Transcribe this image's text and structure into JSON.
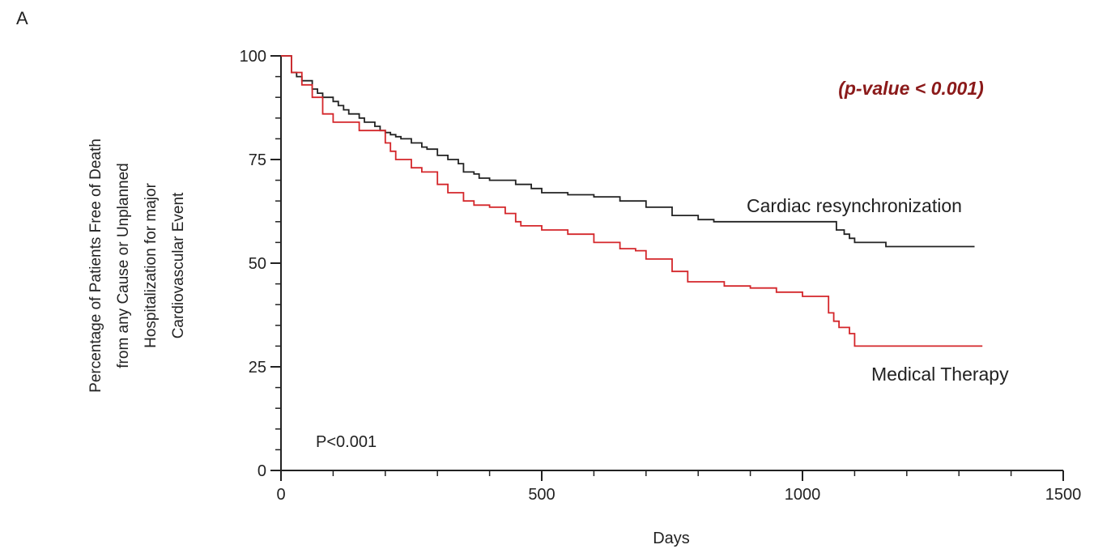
{
  "panel_label": "A",
  "annotations": {
    "pvalue_top": "(p-value < 0.001)",
    "pvalue_bottom": "P<0.001",
    "pvalue_top_color": "#8b1a1a"
  },
  "chart_data": {
    "type": "line",
    "xlabel": "Days",
    "ylabel_lines": [
      "Percentage of Patients Free of Death",
      "from any Cause or Unplanned",
      "Hospitalization for major",
      "Cardiovascular Event"
    ],
    "xlim": [
      0,
      1500
    ],
    "ylim": [
      0,
      100
    ],
    "x_ticks": [
      0,
      500,
      1000,
      1500
    ],
    "x_tick_labels": [
      "0",
      "500",
      "1000",
      "1500"
    ],
    "y_ticks": [
      0,
      25,
      50,
      75,
      100
    ],
    "y_tick_labels": [
      "0",
      "25",
      "50",
      "75",
      "100"
    ],
    "grid": false,
    "series": [
      {
        "name": "Cardiac resynchronization",
        "color": "#222222",
        "x": [
          0,
          15,
          20,
          30,
          40,
          60,
          70,
          80,
          100,
          110,
          120,
          130,
          150,
          160,
          180,
          190,
          200,
          210,
          220,
          230,
          250,
          270,
          280,
          300,
          320,
          340,
          350,
          370,
          380,
          400,
          450,
          480,
          500,
          550,
          600,
          650,
          700,
          750,
          800,
          830,
          900,
          1000,
          1060,
          1065,
          1080,
          1090,
          1100,
          1150,
          1160,
          1330
        ],
        "y": [
          100,
          100,
          96,
          95,
          94,
          92,
          91,
          90,
          89,
          88,
          87,
          86,
          85,
          84,
          83,
          82,
          81.5,
          81,
          80.5,
          80,
          79,
          78,
          77.5,
          76,
          75,
          74,
          72,
          71.5,
          70.5,
          70,
          69,
          68,
          67,
          66.5,
          66,
          65,
          63.5,
          61.5,
          60.5,
          60,
          60,
          60,
          60,
          58,
          57,
          56,
          55,
          55,
          54,
          54
        ]
      },
      {
        "name": "Medical Therapy",
        "color": "#d4262a",
        "x": [
          0,
          15,
          20,
          40,
          60,
          80,
          100,
          150,
          200,
          210,
          220,
          250,
          270,
          300,
          320,
          350,
          370,
          400,
          430,
          450,
          460,
          500,
          550,
          600,
          650,
          680,
          700,
          750,
          780,
          850,
          900,
          950,
          1000,
          1050,
          1060,
          1070,
          1090,
          1100,
          1150,
          1345
        ],
        "y": [
          100,
          100,
          96,
          93,
          90,
          86,
          84,
          82,
          79,
          77,
          75,
          73,
          72,
          69,
          67,
          65,
          64,
          63.5,
          62,
          60,
          59,
          58,
          57,
          55,
          53.5,
          53,
          51,
          48,
          45.5,
          44.5,
          44,
          43,
          42,
          38,
          36,
          34.5,
          33,
          30,
          30,
          30
        ]
      }
    ]
  }
}
